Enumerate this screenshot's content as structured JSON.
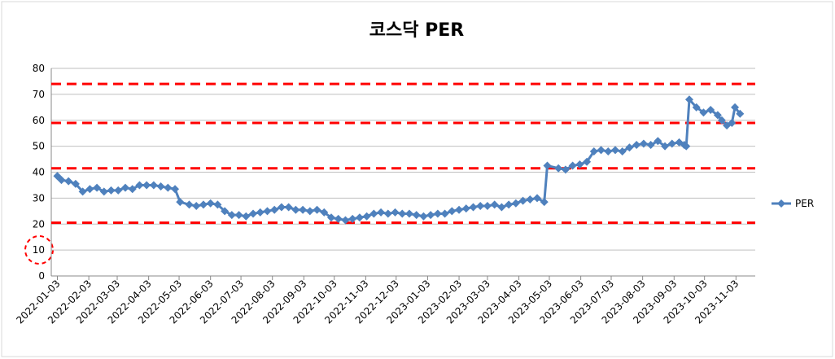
{
  "chart_data": {
    "type": "line",
    "title": "코스닥 PER",
    "x": [
      "2022-01-03",
      "2022-01-07",
      "2022-01-14",
      "2022-01-21",
      "2022-01-28",
      "2022-02-04",
      "2022-02-11",
      "2022-02-18",
      "2022-02-25",
      "2022-03-04",
      "2022-03-11",
      "2022-03-18",
      "2022-03-25",
      "2022-04-01",
      "2022-04-08",
      "2022-04-15",
      "2022-04-22",
      "2022-04-29",
      "2022-05-04",
      "2022-05-13",
      "2022-05-20",
      "2022-05-27",
      "2022-06-03",
      "2022-06-10",
      "2022-06-17",
      "2022-06-24",
      "2022-07-01",
      "2022-07-08",
      "2022-07-15",
      "2022-07-22",
      "2022-07-29",
      "2022-08-05",
      "2022-08-12",
      "2022-08-19",
      "2022-08-26",
      "2022-09-02",
      "2022-09-09",
      "2022-09-16",
      "2022-09-23",
      "2022-09-30",
      "2022-10-07",
      "2022-10-14",
      "2022-10-21",
      "2022-10-28",
      "2022-11-04",
      "2022-11-11",
      "2022-11-18",
      "2022-11-25",
      "2022-12-02",
      "2022-12-09",
      "2022-12-16",
      "2022-12-23",
      "2022-12-30",
      "2023-01-06",
      "2023-01-13",
      "2023-01-20",
      "2023-01-27",
      "2023-02-03",
      "2023-02-10",
      "2023-02-17",
      "2023-02-24",
      "2023-03-03",
      "2023-03-10",
      "2023-03-17",
      "2023-03-24",
      "2023-03-31",
      "2023-04-07",
      "2023-04-14",
      "2023-04-21",
      "2023-04-28",
      "2023-05-01",
      "2023-05-12",
      "2023-05-19",
      "2023-05-26",
      "2023-06-02",
      "2023-06-09",
      "2023-06-16",
      "2023-06-23",
      "2023-06-30",
      "2023-07-07",
      "2023-07-14",
      "2023-07-21",
      "2023-07-28",
      "2023-08-04",
      "2023-08-11",
      "2023-08-18",
      "2023-08-25",
      "2023-09-01",
      "2023-09-08",
      "2023-09-13",
      "2023-09-15",
      "2023-09-18",
      "2023-09-25",
      "2023-10-02",
      "2023-10-09",
      "2023-10-16",
      "2023-10-20",
      "2023-10-25",
      "2023-10-30",
      "2023-11-02",
      "2023-11-07"
    ],
    "series": [
      {
        "name": "PER",
        "color": "#4f81bd",
        "values": [
          38.5,
          37,
          36.5,
          35.5,
          32.5,
          33.5,
          34,
          32.5,
          33,
          33,
          34,
          33.5,
          35,
          35,
          35,
          34.5,
          34,
          33.5,
          28.5,
          27.5,
          27,
          27.5,
          28,
          27.5,
          25,
          23.5,
          23.5,
          23,
          24,
          24.5,
          25,
          25.5,
          26.5,
          26.5,
          25.5,
          25.5,
          25,
          25.5,
          24.5,
          22.5,
          22,
          21.5,
          22,
          22.5,
          23,
          24,
          24.5,
          24,
          24.5,
          24,
          24,
          23.5,
          23,
          23.5,
          24,
          24,
          25,
          25.5,
          26,
          26.5,
          27,
          27,
          27.5,
          26.5,
          27.5,
          28,
          29,
          29.5,
          30,
          28.5,
          42.5,
          41.5,
          41,
          42.5,
          43,
          44,
          48,
          48.5,
          48,
          48.5,
          48,
          49.5,
          50.5,
          51,
          50.5,
          52,
          50,
          51,
          51.5,
          50.5,
          50,
          68,
          65,
          63,
          64,
          62,
          60,
          58,
          59,
          65,
          62.5
        ]
      }
    ],
    "xlim": [
      "2021-12-28",
      "2023-11-22"
    ],
    "xticks": [
      "2022-01-03",
      "2022-02-03",
      "2022-03-03",
      "2022-04-03",
      "2022-05-03",
      "2022-06-03",
      "2022-07-03",
      "2022-08-03",
      "2022-09-03",
      "2022-10-03",
      "2022-11-03",
      "2022-12-03",
      "2023-01-03",
      "2023-02-03",
      "2023-03-03",
      "2023-04-03",
      "2023-05-03",
      "2023-06-03",
      "2023-07-03",
      "2023-08-03",
      "2023-09-03",
      "2023-10-03",
      "2023-11-03"
    ],
    "ylim": [
      0,
      80
    ],
    "yticks": [
      0,
      10,
      20,
      30,
      40,
      50,
      60,
      70,
      80
    ],
    "grid": true,
    "reference_lines": {
      "color": "#ff0000",
      "values": [
        74,
        59,
        41.5,
        20.5
      ]
    },
    "legend": "right"
  }
}
